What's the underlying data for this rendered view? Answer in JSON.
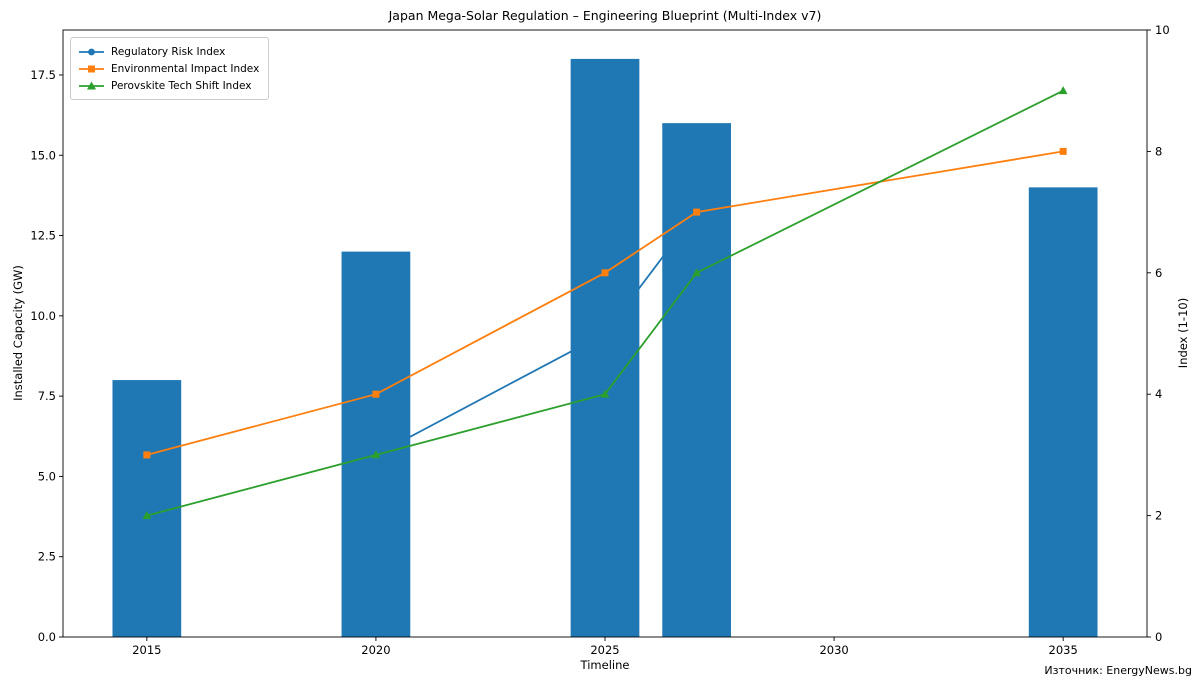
{
  "title": "Japan Mega-Solar Regulation – Engineering Blueprint (Multi-Index v7)",
  "source_note": "Източник: EnergyNews.bg",
  "chart_data": {
    "type": "bar+line combo, dual axis",
    "title": "Japan Mega-Solar Regulation – Engineering Blueprint (Multi-Index v7)",
    "xlabel": "Timeline",
    "ylabel_left": "Installed Capacity (GW)",
    "ylabel_right": "Index (1-10)",
    "xlim": [
      2013.17,
      2036.83
    ],
    "ylim_left": [
      0,
      18.9
    ],
    "ylim_right": [
      0,
      10
    ],
    "xticks": [
      2015,
      2020,
      2025,
      2030,
      2035
    ],
    "yticks_left": [
      0.0,
      2.5,
      5.0,
      7.5,
      10.0,
      12.5,
      15.0,
      17.5
    ],
    "yticks_right": [
      0,
      2,
      4,
      6,
      8,
      10
    ],
    "grid": false,
    "legend_position": "upper left",
    "bars": {
      "axis": "left",
      "label": "Installed Capacity (GW)",
      "color": "#1f77b4",
      "width_years": 1.5,
      "x": [
        2015,
        2020,
        2025,
        2027,
        2035
      ],
      "values": [
        8,
        12,
        18,
        16,
        14
      ]
    },
    "series": [
      {
        "name": "Regulatory Risk Index",
        "color": "#1f77b4",
        "marker": "circle",
        "axis": "right",
        "drawn_behind_bars": true,
        "x": [
          2020,
          2025,
          2027
        ],
        "values": [
          3,
          5,
          7
        ]
      },
      {
        "name": "Environmental Impact Index",
        "color": "#ff7f0e",
        "marker": "square",
        "axis": "right",
        "drawn_behind_bars": false,
        "x": [
          2015,
          2020,
          2025,
          2027,
          2035
        ],
        "values": [
          3,
          4,
          6,
          7,
          8
        ]
      },
      {
        "name": "Perovskite Tech Shift Index",
        "color": "#2ca02c",
        "marker": "triangle",
        "axis": "right",
        "drawn_behind_bars": false,
        "x": [
          2015,
          2020,
          2025,
          2027,
          2035
        ],
        "values": [
          2,
          3,
          4,
          6,
          9
        ]
      }
    ]
  }
}
